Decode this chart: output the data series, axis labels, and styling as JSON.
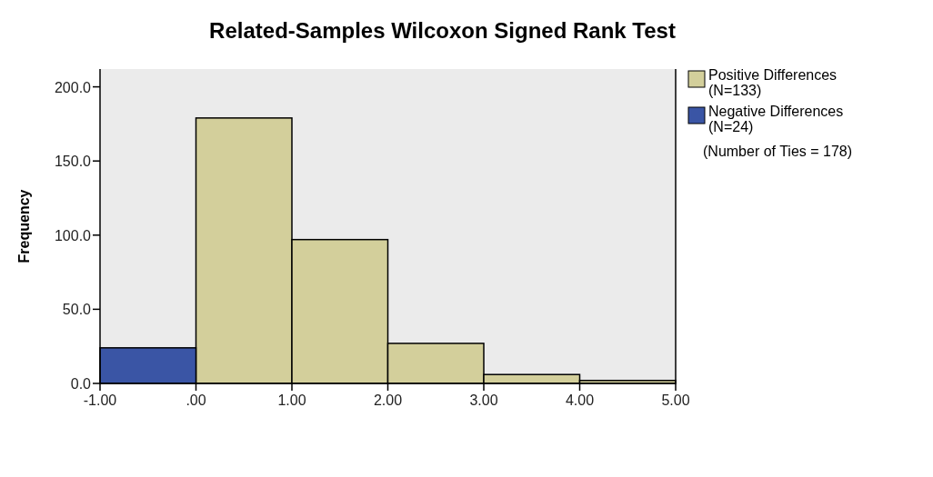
{
  "chart_data": {
    "type": "histogram",
    "title": "Related-Samples Wilcoxon Signed Rank Test",
    "ylabel": "Frequency",
    "bins": [
      -1,
      0,
      1,
      2,
      3,
      4,
      5
    ],
    "series": [
      {
        "name": "Positive Differences (N=133)",
        "color": "#d3cf9b",
        "values": [
          null,
          179,
          97,
          27,
          6,
          2
        ]
      },
      {
        "name": "Negative Differences (N=24)",
        "color": "#3a55a5",
        "values": [
          24,
          null,
          null,
          null,
          null,
          null
        ]
      }
    ],
    "xlim": [
      -1,
      5
    ],
    "xticks": [
      {
        "value": -1,
        "label": "-1.00"
      },
      {
        "value": 0,
        "label": ".00"
      },
      {
        "value": 1,
        "label": "1.00"
      },
      {
        "value": 2,
        "label": "2.00"
      },
      {
        "value": 3,
        "label": "3.00"
      },
      {
        "value": 4,
        "label": "4.00"
      },
      {
        "value": 5,
        "label": "5.00"
      }
    ],
    "ylim": [
      0,
      212
    ],
    "yticks": [
      {
        "value": 0,
        "label": "0.0"
      },
      {
        "value": 50,
        "label": "50.0"
      },
      {
        "value": 100,
        "label": "100.0"
      },
      {
        "value": 150,
        "label": "150.0"
      },
      {
        "value": 200,
        "label": "200.0"
      }
    ],
    "legend": "right",
    "grid": false,
    "annotations": [
      "(Number of Ties = 178)"
    ]
  }
}
